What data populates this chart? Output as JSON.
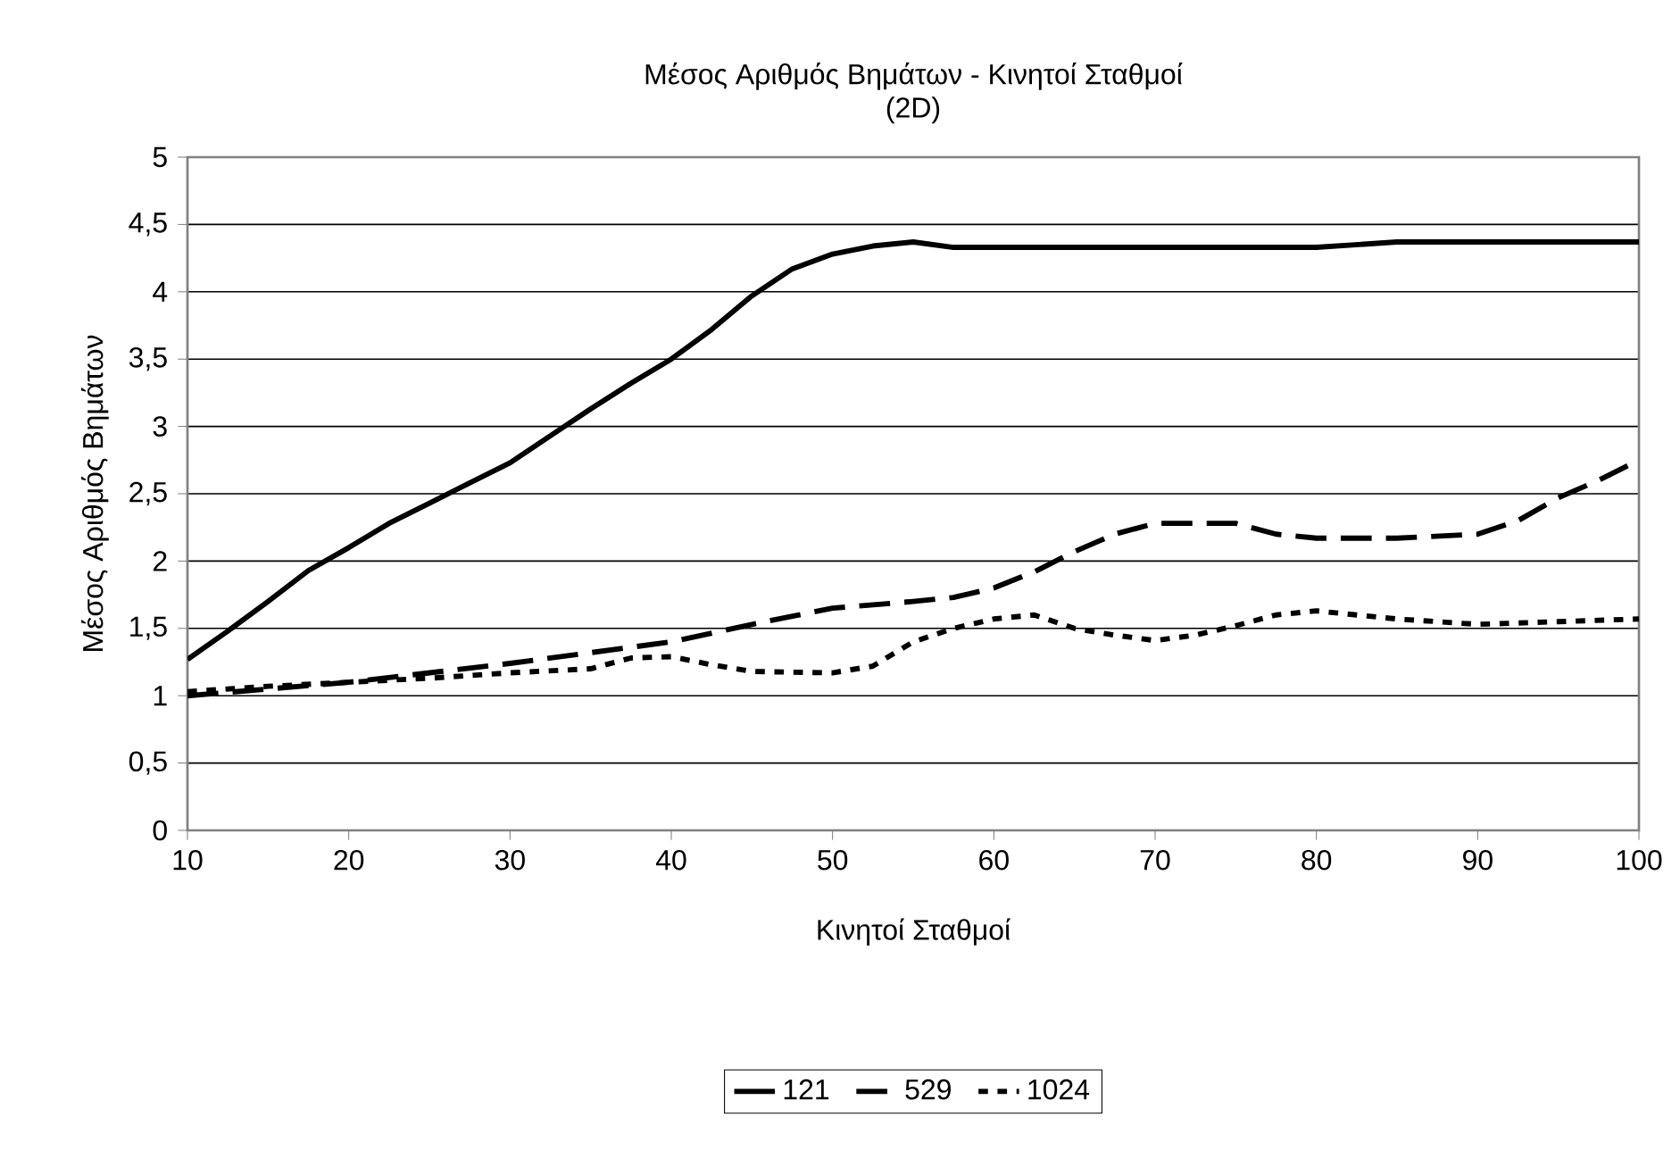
{
  "chart_data": {
    "type": "line",
    "title": "Μέσος Αριθμός Βημάτων - Κινητοί Σταθμοί",
    "subtitle": "(2D)",
    "xlabel": "Κινητοί Σταθμοί",
    "ylabel": "Μέσος Αριθμός Βημάτων",
    "xlim": [
      10,
      100
    ],
    "xticks": [
      10,
      20,
      30,
      40,
      50,
      60,
      70,
      80,
      90,
      100
    ],
    "ylim": [
      0,
      5
    ],
    "yticks": [
      0,
      {
        "value": 0.5,
        "label": "0,5"
      },
      1,
      {
        "value": 1.5,
        "label": "1,5"
      },
      2,
      {
        "value": 2.5,
        "label": "2,5"
      },
      3,
      {
        "value": 3.5,
        "label": "3,5"
      },
      4,
      {
        "value": 4.5,
        "label": "4,5"
      },
      5
    ],
    "grid": "y",
    "legend": "bottom",
    "marker": "none",
    "series": [
      {
        "name": "121",
        "color": "#000000",
        "line_style": "solid",
        "x": [
          10,
          12.5,
          15,
          17.5,
          20,
          22.5,
          25,
          27.5,
          30,
          32.5,
          35,
          37.5,
          40,
          42.5,
          45,
          47.5,
          50,
          52.5,
          55,
          57.5,
          60,
          70,
          80,
          85,
          100
        ],
        "values": [
          1.27,
          1.48,
          1.7,
          1.93,
          2.1,
          2.28,
          2.43,
          2.58,
          2.73,
          2.93,
          3.13,
          3.32,
          3.5,
          3.72,
          3.97,
          4.17,
          4.28,
          4.34,
          4.37,
          4.33,
          4.33,
          4.33,
          4.33,
          4.37,
          4.37
        ]
      },
      {
        "name": "529",
        "color": "#000000",
        "line_style": "dashed",
        "x": [
          10,
          20,
          30,
          40,
          45,
          50,
          55,
          57.5,
          60,
          62.5,
          65,
          67.5,
          70,
          72.5,
          75,
          77.5,
          80,
          85,
          90,
          92.5,
          95,
          97.5,
          100
        ],
        "values": [
          1.0,
          1.1,
          1.24,
          1.4,
          1.53,
          1.65,
          1.7,
          1.73,
          1.8,
          1.92,
          2.07,
          2.2,
          2.28,
          2.28,
          2.28,
          2.2,
          2.17,
          2.17,
          2.2,
          2.3,
          2.47,
          2.6,
          2.75
        ]
      },
      {
        "name": "1024",
        "color": "#000000",
        "line_style": "dotted",
        "x": [
          10,
          15,
          20,
          25,
          30,
          35,
          37.5,
          40,
          42.5,
          45,
          50,
          52.5,
          55,
          57.5,
          60,
          62.5,
          65,
          67.5,
          70,
          72.5,
          75,
          77.5,
          80,
          82.5,
          85,
          90,
          95,
          100
        ],
        "values": [
          1.03,
          1.07,
          1.1,
          1.13,
          1.17,
          1.2,
          1.28,
          1.29,
          1.23,
          1.18,
          1.17,
          1.22,
          1.4,
          1.5,
          1.57,
          1.6,
          1.5,
          1.45,
          1.41,
          1.45,
          1.52,
          1.6,
          1.63,
          1.6,
          1.57,
          1.53,
          1.55,
          1.57
        ]
      }
    ]
  }
}
